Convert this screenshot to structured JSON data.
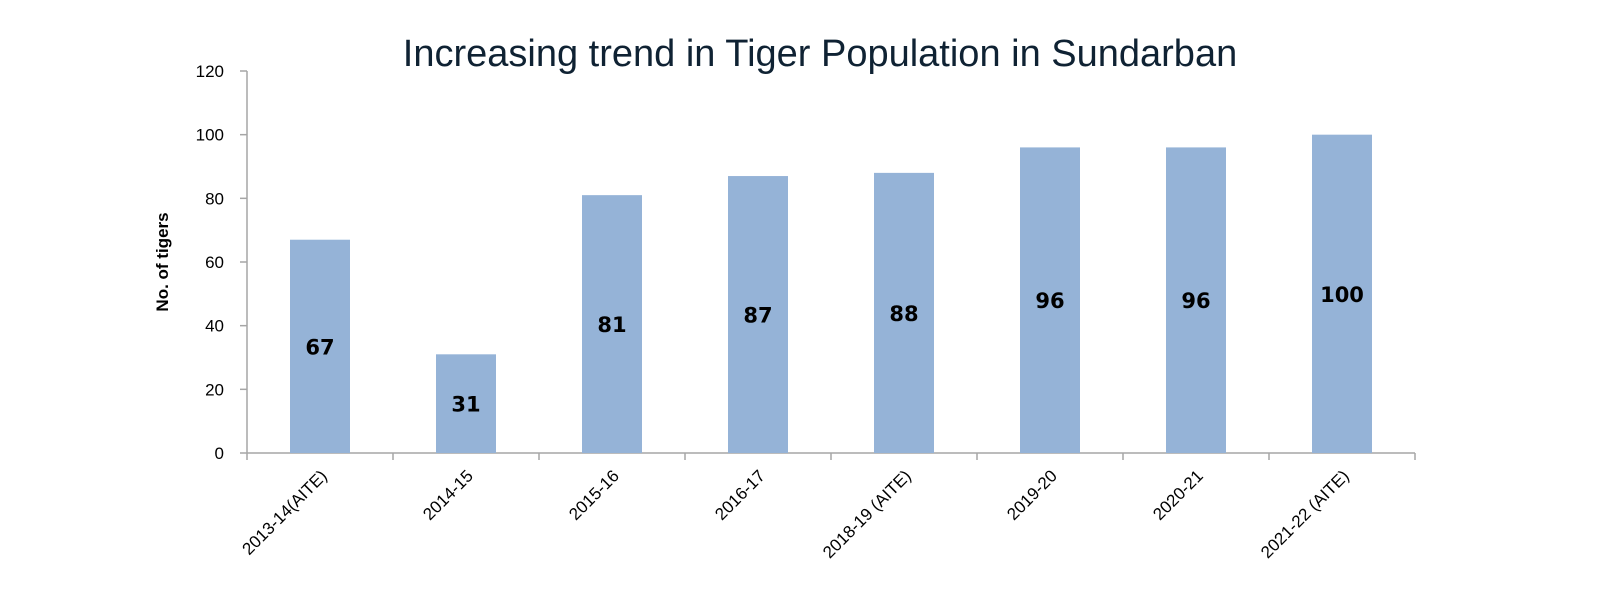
{
  "chart_data": {
    "type": "bar",
    "title": "Increasing trend in Tiger Population in Sundarban",
    "xlabel": "",
    "ylabel": "No. of tigers",
    "ylim": [
      0,
      120
    ],
    "yticks": [
      0,
      20,
      40,
      60,
      80,
      100,
      120
    ],
    "categories": [
      "2013-14(AITE)",
      "2014-15",
      "2015-16",
      "2016-17",
      "2018-19 (AITE)",
      "2019-20",
      "2020-21",
      "2021-22 (AITE)"
    ],
    "values": [
      67,
      31,
      81,
      87,
      88,
      96,
      96,
      100
    ],
    "bar_color": "#95b3d7",
    "data_labels": true,
    "grid": false,
    "legend": "none"
  }
}
